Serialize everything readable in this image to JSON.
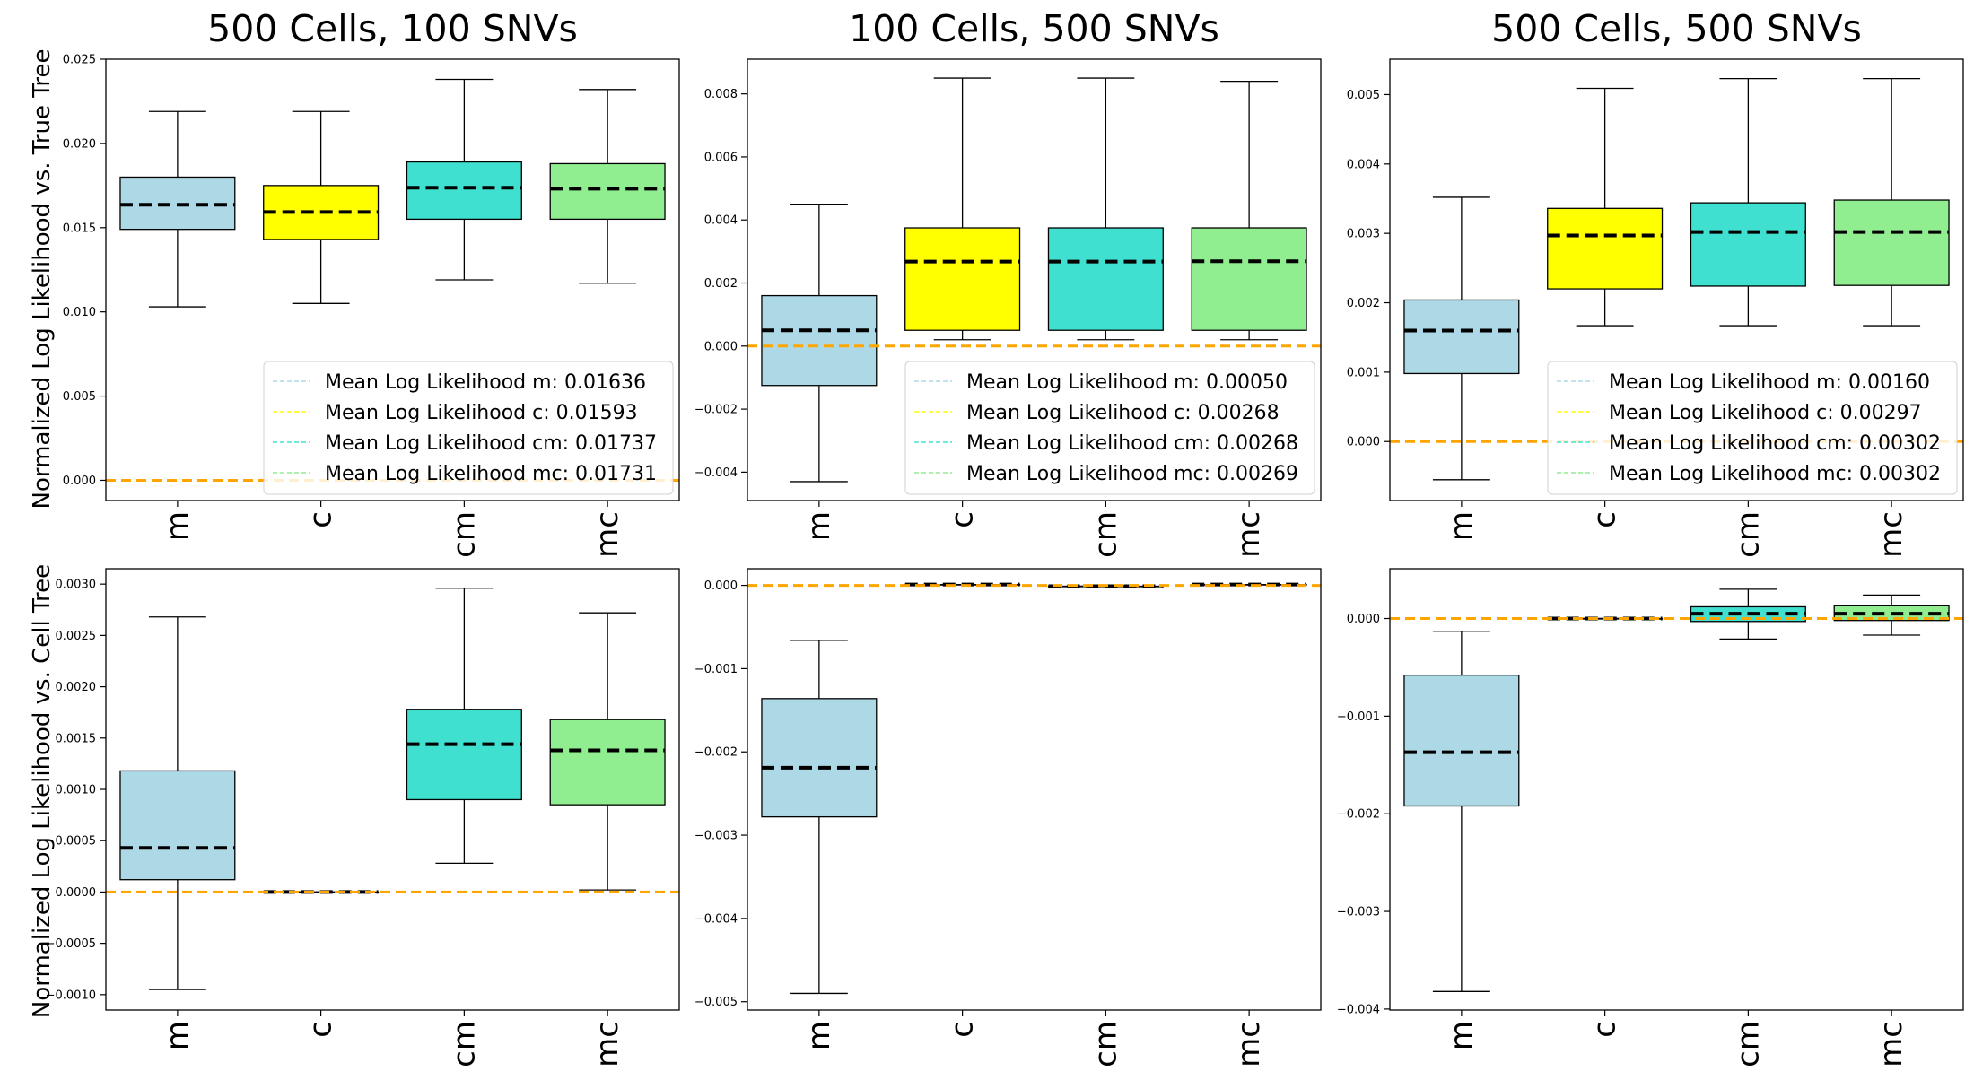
{
  "figure": {
    "row_labels": [
      "Normalized Log Likelihood vs. True Tree",
      "Normalized Log Likelihood vs. Cell Tree"
    ]
  },
  "colors": {
    "m": "#add8e6",
    "c": "#ffff00",
    "cm": "#40e0d0",
    "mc": "#90ee90",
    "reference_line": "#ffa500",
    "mean_line": "#000000",
    "whisker": "#000000"
  },
  "chart_data": [
    {
      "type": "box",
      "title": "500 Cells, 100 SNVs",
      "categories": [
        "m",
        "c",
        "cm",
        "mc"
      ],
      "ylim": [
        -0.0012,
        0.025
      ],
      "yticks": [
        0.0,
        0.005,
        0.01,
        0.015,
        0.02,
        0.025
      ],
      "ytick_labels": [
        "0.000",
        "0.005",
        "0.010",
        "0.015",
        "0.020",
        "0.025"
      ],
      "reference_line": 0,
      "boxes": [
        {
          "name": "m",
          "whisker_low": 0.0103,
          "q1": 0.0149,
          "mean": 0.01636,
          "q3": 0.018,
          "whisker_high": 0.0219
        },
        {
          "name": "c",
          "whisker_low": 0.0105,
          "q1": 0.0143,
          "mean": 0.01593,
          "q3": 0.0175,
          "whisker_high": 0.0219
        },
        {
          "name": "cm",
          "whisker_low": 0.0119,
          "q1": 0.0155,
          "mean": 0.01737,
          "q3": 0.0189,
          "whisker_high": 0.0238
        },
        {
          "name": "mc",
          "whisker_low": 0.0117,
          "q1": 0.0155,
          "mean": 0.01731,
          "q3": 0.0188,
          "whisker_high": 0.0232
        }
      ],
      "legend": {
        "position": "lower-right",
        "entries": [
          "Mean Log Likelihood m: 0.01636",
          "Mean Log Likelihood c: 0.01593",
          "Mean Log Likelihood cm: 0.01737",
          "Mean Log Likelihood mc: 0.01731"
        ]
      }
    },
    {
      "type": "box",
      "title": "100 Cells, 500 SNVs",
      "categories": [
        "m",
        "c",
        "cm",
        "mc"
      ],
      "ylim": [
        -0.0049,
        0.0091
      ],
      "yticks": [
        -0.004,
        -0.002,
        0.0,
        0.002,
        0.004,
        0.006,
        0.008
      ],
      "ytick_labels": [
        "−0.004",
        "−0.002",
        "0.000",
        "0.002",
        "0.004",
        "0.006",
        "0.008"
      ],
      "reference_line": 0,
      "boxes": [
        {
          "name": "m",
          "whisker_low": -0.0043,
          "q1": -0.00125,
          "mean": 0.0005,
          "q3": 0.0016,
          "whisker_high": 0.0045
        },
        {
          "name": "c",
          "whisker_low": 0.0002,
          "q1": 0.0005,
          "mean": 0.00268,
          "q3": 0.00375,
          "whisker_high": 0.0085
        },
        {
          "name": "cm",
          "whisker_low": 0.0002,
          "q1": 0.0005,
          "mean": 0.00268,
          "q3": 0.00375,
          "whisker_high": 0.0085
        },
        {
          "name": "mc",
          "whisker_low": 0.0002,
          "q1": 0.0005,
          "mean": 0.00269,
          "q3": 0.00375,
          "whisker_high": 0.0084
        }
      ],
      "legend": {
        "position": "lower-right",
        "entries": [
          "Mean Log Likelihood m: 0.00050",
          "Mean Log Likelihood c: 0.00268",
          "Mean Log Likelihood cm: 0.00268",
          "Mean Log Likelihood mc: 0.00269"
        ]
      }
    },
    {
      "type": "box",
      "title": "500 Cells, 500 SNVs",
      "categories": [
        "m",
        "c",
        "cm",
        "mc"
      ],
      "ylim": [
        -0.00085,
        0.00551
      ],
      "yticks": [
        0.0,
        0.001,
        0.002,
        0.003,
        0.004,
        0.005
      ],
      "ytick_labels": [
        "0.000",
        "0.001",
        "0.002",
        "0.003",
        "0.004",
        "0.005"
      ],
      "reference_line": 0,
      "boxes": [
        {
          "name": "m",
          "whisker_low": -0.00055,
          "q1": 0.00098,
          "mean": 0.0016,
          "q3": 0.00204,
          "whisker_high": 0.00352
        },
        {
          "name": "c",
          "whisker_low": 0.00167,
          "q1": 0.0022,
          "mean": 0.00297,
          "q3": 0.00336,
          "whisker_high": 0.00509
        },
        {
          "name": "cm",
          "whisker_low": 0.00167,
          "q1": 0.00224,
          "mean": 0.00302,
          "q3": 0.00344,
          "whisker_high": 0.00523
        },
        {
          "name": "mc",
          "whisker_low": 0.00167,
          "q1": 0.00225,
          "mean": 0.00302,
          "q3": 0.00348,
          "whisker_high": 0.00523
        }
      ],
      "legend": {
        "position": "lower-right",
        "entries": [
          "Mean Log Likelihood m: 0.00160",
          "Mean Log Likelihood c: 0.00297",
          "Mean Log Likelihood cm: 0.00302",
          "Mean Log Likelihood mc: 0.00302"
        ]
      }
    },
    {
      "type": "box",
      "title": "",
      "categories": [
        "m",
        "c",
        "cm",
        "mc"
      ],
      "ylim": [
        -0.00115,
        0.00315
      ],
      "yticks": [
        -0.001,
        -0.0005,
        0.0,
        0.0005,
        0.001,
        0.0015,
        0.002,
        0.0025,
        0.003
      ],
      "ytick_labels": [
        "−0.0010",
        "−0.0005",
        "0.0000",
        "0.0005",
        "0.0010",
        "0.0015",
        "0.0020",
        "0.0025",
        "0.0030"
      ],
      "reference_line": 0,
      "boxes": [
        {
          "name": "m",
          "whisker_low": -0.00095,
          "q1": 0.00012,
          "mean": 0.00043,
          "q3": 0.00118,
          "whisker_high": 0.00268
        },
        {
          "name": "c",
          "whisker_low": 0.0,
          "q1": 0.0,
          "mean": 0.0,
          "q3": 0.0,
          "whisker_high": 0.0
        },
        {
          "name": "cm",
          "whisker_low": 0.00028,
          "q1": 0.0009,
          "mean": 0.00144,
          "q3": 0.00178,
          "whisker_high": 0.00296
        },
        {
          "name": "mc",
          "whisker_low": 2e-05,
          "q1": 0.00085,
          "mean": 0.00138,
          "q3": 0.00168,
          "whisker_high": 0.00272
        }
      ],
      "legend": null
    },
    {
      "type": "box",
      "title": "",
      "categories": [
        "m",
        "c",
        "cm",
        "mc"
      ],
      "ylim": [
        -0.0051,
        0.0002
      ],
      "yticks": [
        -0.005,
        -0.004,
        -0.003,
        -0.002,
        -0.001,
        0.0
      ],
      "ytick_labels": [
        "−0.005",
        "−0.004",
        "−0.003",
        "−0.002",
        "−0.001",
        "0.000"
      ],
      "reference_line": 0,
      "boxes": [
        {
          "name": "m",
          "whisker_low": -0.0049,
          "q1": -0.00278,
          "mean": -0.00219,
          "q3": -0.00136,
          "whisker_high": -0.00066
        },
        {
          "name": "c",
          "whisker_low": 1e-05,
          "q1": 1e-05,
          "mean": 1e-05,
          "q3": 1e-05,
          "whisker_high": 1e-05
        },
        {
          "name": "cm",
          "whisker_low": -1e-05,
          "q1": -1e-05,
          "mean": -1e-05,
          "q3": -1e-05,
          "whisker_high": -1e-05
        },
        {
          "name": "mc",
          "whisker_low": 1e-05,
          "q1": 1e-05,
          "mean": 1e-05,
          "q3": 1e-05,
          "whisker_high": 1e-05
        }
      ],
      "legend": null
    },
    {
      "type": "box",
      "title": "",
      "categories": [
        "m",
        "c",
        "cm",
        "mc"
      ],
      "ylim": [
        -0.00401,
        0.00051
      ],
      "yticks": [
        -0.004,
        -0.003,
        -0.002,
        -0.001,
        0.0
      ],
      "ytick_labels": [
        "−0.004",
        "−0.003",
        "−0.002",
        "−0.001",
        "0.000"
      ],
      "reference_line": 0,
      "boxes": [
        {
          "name": "m",
          "whisker_low": -0.00382,
          "q1": -0.00192,
          "mean": -0.00137,
          "q3": -0.00058,
          "whisker_high": -0.00013
        },
        {
          "name": "c",
          "whisker_low": 0.0,
          "q1": 0.0,
          "mean": 0.0,
          "q3": 0.0,
          "whisker_high": 0.0
        },
        {
          "name": "cm",
          "whisker_low": -0.00021,
          "q1": -3e-05,
          "mean": 5e-05,
          "q3": 0.00012,
          "whisker_high": 0.0003
        },
        {
          "name": "mc",
          "whisker_low": -0.00017,
          "q1": -2e-05,
          "mean": 5e-05,
          "q3": 0.00013,
          "whisker_high": 0.00024
        }
      ],
      "legend": null
    }
  ]
}
